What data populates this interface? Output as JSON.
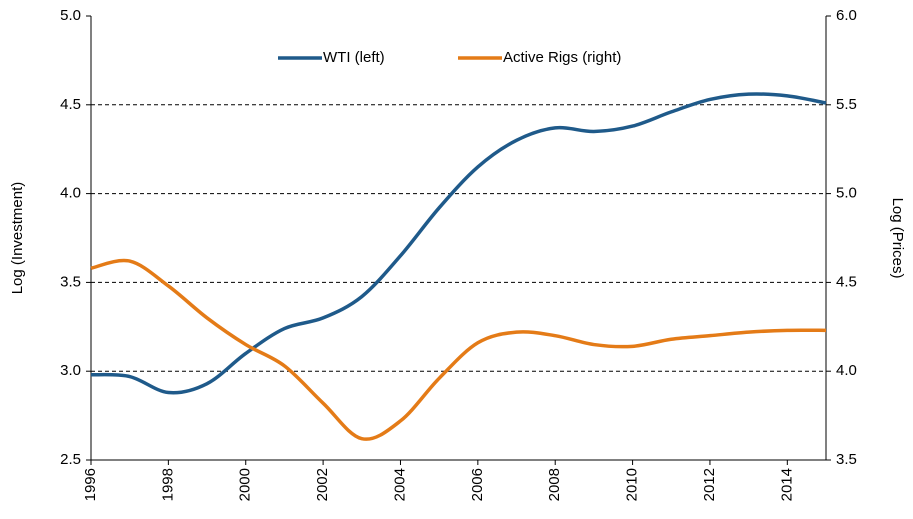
{
  "chart_data": {
    "type": "line",
    "x": [
      1996,
      1997,
      1998,
      1999,
      2000,
      2001,
      2002,
      2003,
      2004,
      2005,
      2006,
      2007,
      2008,
      2009,
      2010,
      2011,
      2012,
      2013,
      2014,
      2015
    ],
    "series": [
      {
        "name": "WTI (left)",
        "color": "#1f5a8a",
        "axis": "y",
        "values": [
          2.98,
          2.97,
          2.88,
          2.93,
          3.1,
          3.24,
          3.3,
          3.42,
          3.65,
          3.92,
          4.15,
          4.3,
          4.37,
          4.35,
          4.38,
          4.46,
          4.53,
          4.56,
          4.55,
          4.51
        ]
      },
      {
        "name": "Active Rigs (right)",
        "color": "#e47b17",
        "axis": "y2",
        "values": [
          4.58,
          4.62,
          4.48,
          4.3,
          4.15,
          4.03,
          3.82,
          3.62,
          3.72,
          3.96,
          4.16,
          4.22,
          4.2,
          4.15,
          4.14,
          4.18,
          4.2,
          4.22,
          4.23,
          4.23
        ]
      }
    ],
    "xlim": [
      1996,
      2015
    ],
    "xticks": [
      1996,
      1998,
      2000,
      2002,
      2004,
      2006,
      2008,
      2010,
      2012,
      2014
    ],
    "ylim": [
      2.5,
      5.0
    ],
    "yticks": [
      2.5,
      {
        "value": 3,
        "label": "3.0"
      },
      3.5,
      {
        "value": 4,
        "label": "4.0"
      },
      4.5,
      {
        "value": 5,
        "label": "5.0"
      }
    ],
    "y2lim": [
      3.5,
      6.0
    ],
    "y2ticks": [
      3.5,
      {
        "value": 4,
        "label": "4.0"
      },
      4.5,
      {
        "value": 5,
        "label": "5.0"
      },
      5.5,
      {
        "value": 6,
        "label": "6.0"
      }
    ],
    "y_label": "Log (Investment)",
    "y2_label": "Log (Prices)",
    "grid": true,
    "legend": "top"
  }
}
